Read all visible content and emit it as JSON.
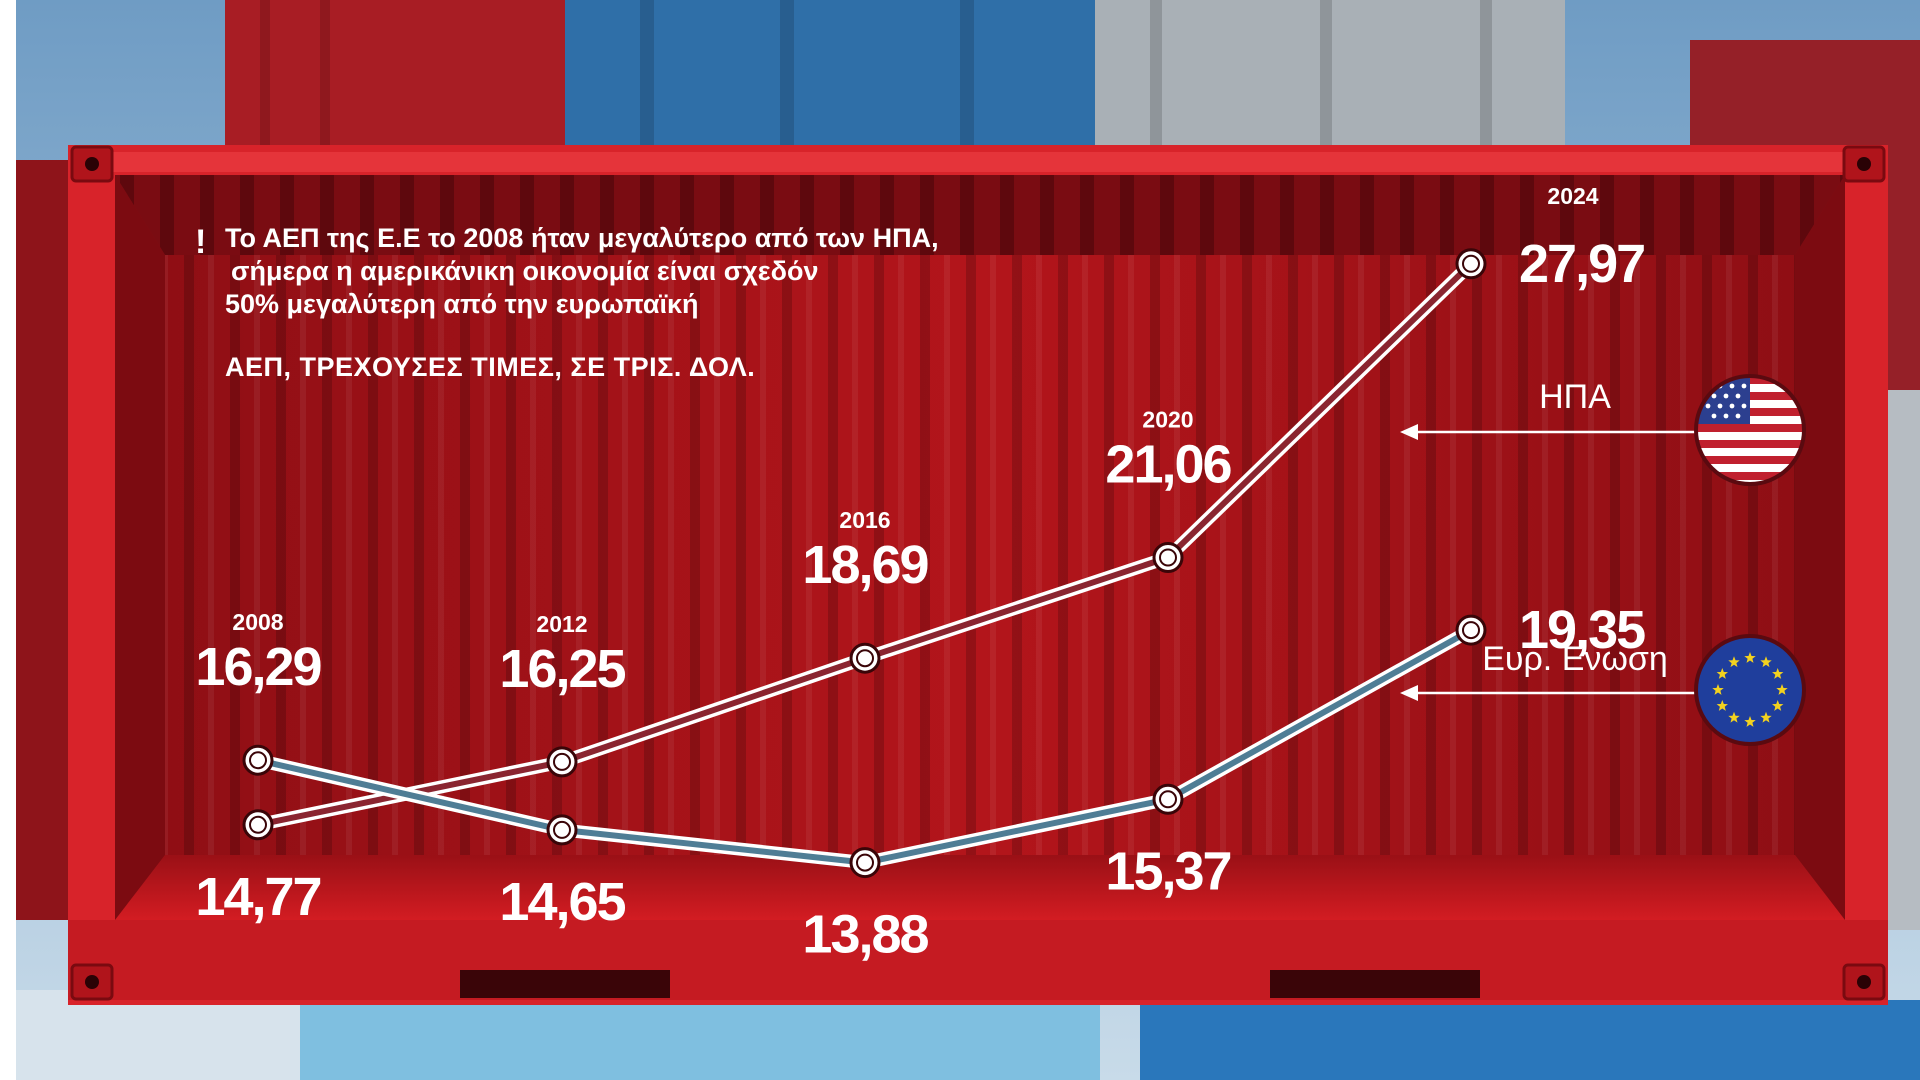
{
  "headline": {
    "marker": "!",
    "lines": [
      "Το ΑΕΠ της Ε.Ε το 2008 ήταν μεγαλύτερο από των ΗΠΑ,",
      "σήμερα η αμερικάνικη οικονομία είναι σχεδόν",
      "50% μεγαλύτερη από την ευρωπαϊκή"
    ]
  },
  "subtitle": "ΑΕΠ, ΤΡΕΧΟΥΣΕΣ ΤΙΜΕΣ, ΣΕ ΤΡΙΣ. ΔΟΛ.",
  "colors": {
    "container_red": "#c8151d",
    "usa_line": "#8a2530",
    "eu_line": "#4f7d95",
    "marker_fill": "#ffffff",
    "text": "#ffffff"
  },
  "icons": [
    "usa-flag-icon",
    "eu-flag-icon",
    "arrow-left-icon"
  ],
  "chart_data": {
    "type": "line",
    "title": "ΑΕΠ, ΤΡΕΧΟΥΣΕΣ ΤΙΜΕΣ, ΣΕ ΤΡΙΣ. ΔΟΛ.",
    "categories": [
      "2008",
      "2012",
      "2016",
      "2020",
      "2024"
    ],
    "series": [
      {
        "name": "ΗΠΑ",
        "values": [
          14.77,
          16.25,
          18.69,
          21.06,
          27.97
        ],
        "labels": [
          "14,77",
          "16,25",
          "18,69",
          "21,06",
          "27,97"
        ]
      },
      {
        "name": "Ευρ. Ενωση",
        "values": [
          16.29,
          14.65,
          13.88,
          15.37,
          19.35
        ],
        "labels": [
          "16,29",
          "14,65",
          "13,88",
          "15,37",
          "19,35"
        ]
      }
    ],
    "ylim": [
      13,
      29
    ],
    "grid": false,
    "legend": "right"
  }
}
